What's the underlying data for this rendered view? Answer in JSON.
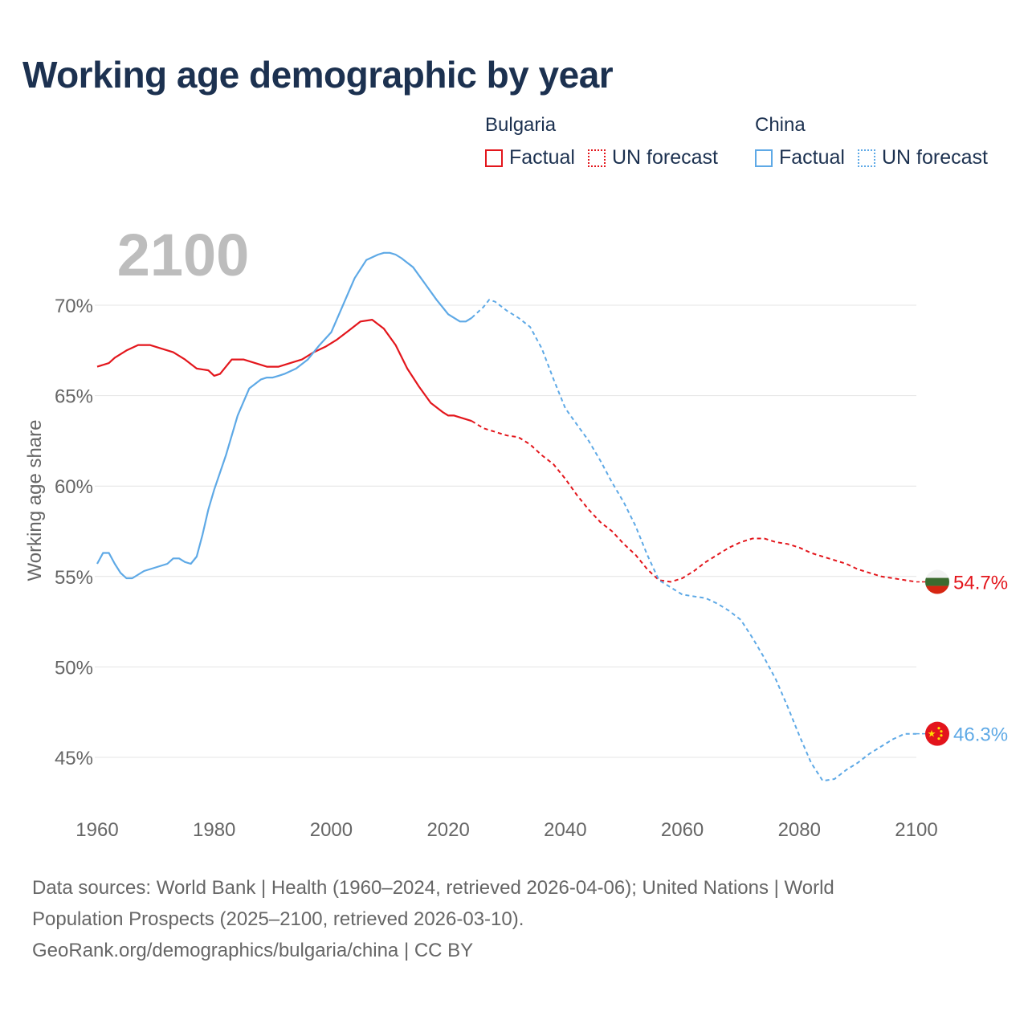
{
  "title": "Working age demographic by year",
  "legend": {
    "groups": [
      {
        "name": "Bulgaria",
        "color": "#e3161c",
        "factual_label": "Factual",
        "forecast_label": "UN forecast"
      },
      {
        "name": "China",
        "color": "#5ea9e6",
        "factual_label": "Factual",
        "forecast_label": "UN forecast"
      }
    ]
  },
  "footer": {
    "sources_line1": "Data sources: World Bank | Health (1960–2024, retrieved 2026-04-06); United Nations | World",
    "sources_line2": "Population Prospects (2025–2100, retrieved 2026-03-10).",
    "credit": "GeoRank.org/demographics/bulgaria/china | CC BY"
  },
  "chart_data": {
    "type": "line",
    "title": "Working age demographic by year",
    "year_watermark": "2100",
    "xlabel": "",
    "ylabel": "Working age share",
    "xlim": [
      1960,
      2100
    ],
    "ylim": [
      41.8,
      74
    ],
    "x_ticks": [
      "1960",
      "1980",
      "2000",
      "2020",
      "2040",
      "2060",
      "2080",
      "2100"
    ],
    "x_tick_values": [
      1960,
      1980,
      2000,
      2020,
      2040,
      2060,
      2080,
      2100
    ],
    "y_ticks": [
      "45%",
      "50%",
      "55%",
      "60%",
      "65%",
      "70%"
    ],
    "y_tick_values": [
      45,
      50,
      55,
      60,
      65,
      70
    ],
    "grid": true,
    "series": [
      {
        "name": "Bulgaria",
        "color": "#e3161c",
        "end_label": "54.7%",
        "factual": {
          "x": [
            1960,
            1962,
            1963,
            1965,
            1967,
            1969,
            1971,
            1973,
            1975,
            1977,
            1979,
            1980,
            1981,
            1983,
            1985,
            1987,
            1989,
            1991,
            1993,
            1995,
            1997,
            1999,
            2001,
            2003,
            2005,
            2007,
            2009,
            2011,
            2013,
            2015,
            2017,
            2019,
            2020,
            2021,
            2022,
            2023,
            2024
          ],
          "y": [
            66.6,
            66.8,
            67.1,
            67.5,
            67.8,
            67.8,
            67.6,
            67.4,
            67.0,
            66.5,
            66.4,
            66.1,
            66.2,
            67.0,
            67.0,
            66.8,
            66.6,
            66.6,
            66.8,
            67.0,
            67.4,
            67.7,
            68.1,
            68.6,
            69.1,
            69.2,
            68.7,
            67.8,
            66.5,
            65.5,
            64.6,
            64.1,
            63.9,
            63.9,
            63.8,
            63.7,
            63.6
          ]
        },
        "forecast": {
          "x": [
            2024,
            2026,
            2028,
            2030,
            2032,
            2034,
            2036,
            2038,
            2040,
            2042,
            2044,
            2046,
            2048,
            2050,
            2052,
            2054,
            2056,
            2058,
            2060,
            2062,
            2064,
            2066,
            2068,
            2070,
            2072,
            2074,
            2076,
            2078,
            2080,
            2082,
            2084,
            2086,
            2088,
            2090,
            2092,
            2094,
            2096,
            2098,
            2100
          ],
          "y": [
            63.6,
            63.2,
            63.0,
            62.8,
            62.7,
            62.3,
            61.7,
            61.2,
            60.4,
            59.5,
            58.7,
            58.0,
            57.5,
            56.8,
            56.2,
            55.4,
            54.8,
            54.7,
            54.9,
            55.3,
            55.8,
            56.2,
            56.6,
            56.9,
            57.1,
            57.1,
            56.9,
            56.8,
            56.6,
            56.3,
            56.1,
            55.9,
            55.7,
            55.4,
            55.2,
            55.0,
            54.9,
            54.8,
            54.7
          ]
        }
      },
      {
        "name": "China",
        "color": "#5ea9e6",
        "end_label": "46.3%",
        "factual": {
          "x": [
            1960,
            1961,
            1962,
            1963,
            1964,
            1965,
            1966,
            1968,
            1970,
            1972,
            1973,
            1974,
            1975,
            1976,
            1977,
            1978,
            1979,
            1980,
            1982,
            1984,
            1986,
            1988,
            1989,
            1990,
            1991,
            1992,
            1994,
            1996,
            1998,
            2000,
            2002,
            2004,
            2006,
            2008,
            2009,
            2010,
            2011,
            2012,
            2014,
            2016,
            2018,
            2019,
            2020,
            2021,
            2022,
            2023,
            2024
          ],
          "y": [
            55.7,
            56.3,
            56.3,
            55.7,
            55.2,
            54.9,
            54.9,
            55.3,
            55.5,
            55.7,
            56.0,
            56.0,
            55.8,
            55.7,
            56.1,
            57.3,
            58.7,
            59.8,
            61.7,
            63.9,
            65.4,
            65.9,
            66.0,
            66.0,
            66.1,
            66.2,
            66.5,
            67.0,
            67.8,
            68.5,
            70.0,
            71.5,
            72.5,
            72.8,
            72.9,
            72.9,
            72.8,
            72.6,
            72.1,
            71.2,
            70.3,
            69.9,
            69.5,
            69.3,
            69.1,
            69.1,
            69.3
          ]
        },
        "forecast": {
          "x": [
            2024,
            2026,
            2027,
            2028,
            2030,
            2032,
            2034,
            2036,
            2038,
            2040,
            2042,
            2044,
            2046,
            2048,
            2050,
            2052,
            2054,
            2056,
            2058,
            2060,
            2062,
            2064,
            2066,
            2068,
            2070,
            2072,
            2074,
            2076,
            2078,
            2080,
            2082,
            2084,
            2086,
            2088,
            2090,
            2092,
            2094,
            2096,
            2098,
            2099,
            2100
          ],
          "y": [
            69.3,
            69.9,
            70.3,
            70.2,
            69.7,
            69.3,
            68.8,
            67.6,
            65.9,
            64.3,
            63.4,
            62.5,
            61.4,
            60.2,
            59.1,
            57.8,
            56.2,
            54.8,
            54.4,
            54.0,
            53.9,
            53.8,
            53.5,
            53.1,
            52.6,
            51.6,
            50.5,
            49.3,
            47.8,
            46.2,
            44.7,
            43.7,
            43.8,
            44.3,
            44.7,
            45.2,
            45.6,
            46.0,
            46.3,
            46.3,
            46.3
          ]
        }
      }
    ]
  }
}
